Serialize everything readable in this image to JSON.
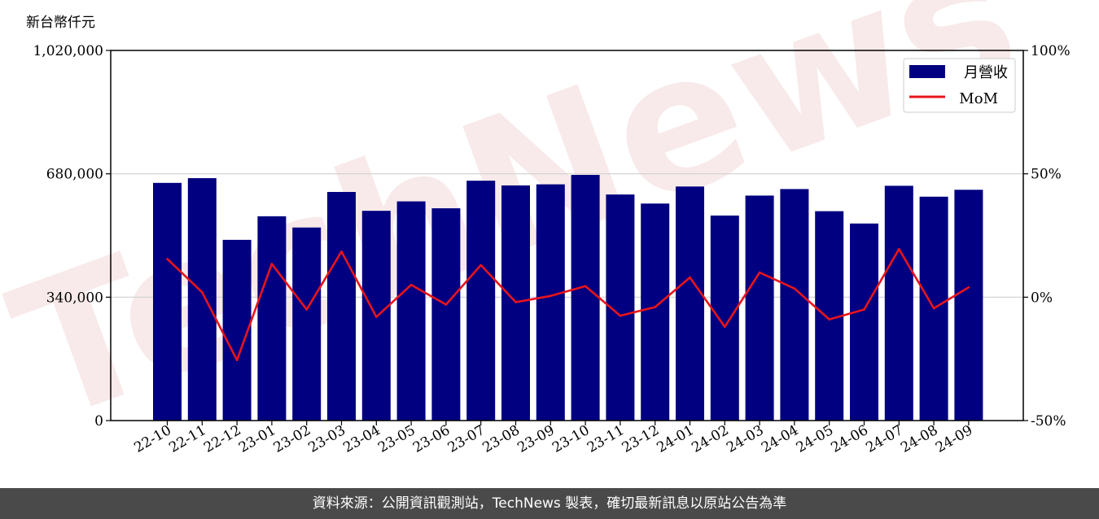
{
  "unit_label": "新台幣仟元",
  "watermark": "TechNews",
  "footer_text": "資料來源：公開資訊觀測站，TechNews 製表，確切最新訊息以原站公告為準",
  "colors": {
    "bar": "#000080",
    "line": "#e8141b",
    "footer_bg": "#4a4a4a",
    "grid": "#d0d0d0"
  },
  "chart_data": {
    "type": "bar",
    "title": "",
    "xlabel": "",
    "ylabel": "新台幣仟元",
    "categories": [
      "22-10",
      "22-11",
      "22-12",
      "23-01",
      "23-02",
      "23-03",
      "23-04",
      "23-05",
      "23-06",
      "23-07",
      "23-08",
      "23-09",
      "23-10",
      "23-11",
      "23-12",
      "24-01",
      "24-02",
      "24-03",
      "24-04",
      "24-05",
      "24-06",
      "24-07",
      "24-08",
      "24-09"
    ],
    "series": [
      {
        "name": "月營收",
        "type": "bar",
        "axis": "left",
        "values": [
          655000,
          668000,
          498000,
          563000,
          532000,
          630000,
          578000,
          604000,
          585000,
          661000,
          648000,
          651000,
          677000,
          623000,
          598000,
          645000,
          565000,
          620000,
          638000,
          577000,
          543000,
          647000,
          617000,
          636000
        ]
      },
      {
        "name": "MoM",
        "type": "line",
        "axis": "right",
        "unit": "%",
        "values": [
          15.5,
          2.0,
          -25.5,
          13.5,
          -5.0,
          18.5,
          -8.0,
          5.0,
          -3.0,
          13.0,
          -2.0,
          0.5,
          4.5,
          -7.5,
          -4.0,
          8.0,
          -12.0,
          10.0,
          3.5,
          -9.0,
          -5.0,
          19.5,
          -4.5,
          4.0
        ]
      }
    ],
    "ylim": [
      0,
      1020000
    ],
    "yticks": [
      0,
      340000,
      680000,
      1020000
    ],
    "ytick_labels": [
      "0",
      "340,000",
      "680,000",
      "1,020,000"
    ],
    "y2lim": [
      -50,
      100
    ],
    "y2ticks": [
      -50,
      0,
      50,
      100
    ],
    "y2tick_labels": [
      "-50%",
      "0%",
      "50%",
      "100%"
    ],
    "grid": "horizontal",
    "legend_position": "top-right"
  }
}
